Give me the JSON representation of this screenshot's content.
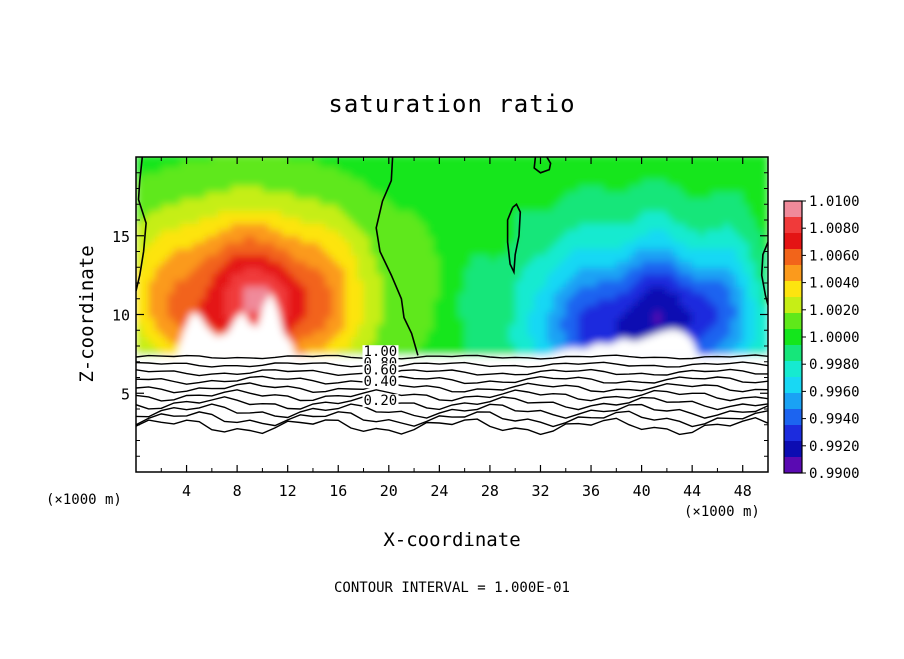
{
  "chart_data": {
    "type": "heatmap",
    "title": "saturation ratio",
    "xlabel": "X-coordinate",
    "ylabel": "Z-coordinate",
    "x_unit_label": "(×1000 m)",
    "x_unit_label_right": "(×1000 m)",
    "xlim": [
      0,
      50
    ],
    "ylim": [
      0,
      20
    ],
    "x_ticks": [
      4,
      8,
      12,
      16,
      20,
      24,
      28,
      32,
      36,
      40,
      44,
      48
    ],
    "y_ticks": [
      5,
      10,
      15
    ],
    "colorbar": {
      "min": 0.99,
      "max": 1.01,
      "labels": [
        "1.0100",
        "1.0080",
        "1.0060",
        "1.0040",
        "1.0020",
        "1.0000",
        "0.9980",
        "0.9960",
        "0.9940",
        "0.9920",
        "0.9900"
      ],
      "colors": [
        "#f08a9a",
        "#f03a3a",
        "#e41414",
        "#f2641a",
        "#fb9a1c",
        "#fde40f",
        "#c6ee16",
        "#5fe81a",
        "#14e61c",
        "#16e67a",
        "#16ead0",
        "#18d8f4",
        "#1aa2f4",
        "#1c64f0",
        "#1c2cde",
        "#0c0cb2",
        "#5a0ab2"
      ]
    },
    "contour_labels": [
      "1.00",
      "0.80",
      "0.60",
      "0.40",
      "0.20"
    ],
    "contour_levels": [
      1.0,
      0.9,
      0.8,
      0.7,
      0.6,
      0.5,
      0.4,
      0.3,
      0.2,
      0.1
    ],
    "footer": "CONTOUR INTERVAL = 1.000E-01"
  }
}
